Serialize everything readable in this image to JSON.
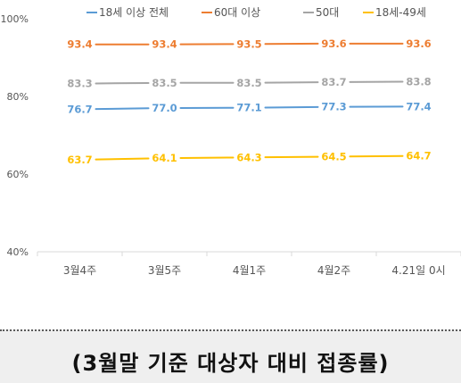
{
  "chart_data": {
    "type": "line",
    "categories": [
      "3월4주",
      "3월5주",
      "4월1주",
      "4월2주",
      "4.21일 0시"
    ],
    "ylim": [
      40,
      100
    ],
    "yticks": [
      40,
      60,
      80,
      100
    ],
    "ytick_labels": [
      "40%",
      "60%",
      "80%",
      "100%"
    ],
    "grid": false,
    "legend": "top",
    "series": [
      {
        "name": "18세 이상 전체",
        "color": "#5b9bd5",
        "values": [
          76.7,
          77.0,
          77.1,
          77.3,
          77.4
        ],
        "labels": [
          "76.7",
          "77.0",
          "77.1",
          "77.3",
          "77.4"
        ]
      },
      {
        "name": "60대 이상",
        "color": "#ed7d31",
        "values": [
          93.4,
          93.4,
          93.5,
          93.6,
          93.6
        ],
        "labels": [
          "93.4",
          "93.4",
          "93.5",
          "93.6",
          "93.6"
        ]
      },
      {
        "name": "50대",
        "color": "#a5a5a5",
        "values": [
          83.3,
          83.5,
          83.5,
          83.7,
          83.8
        ],
        "labels": [
          "83.3",
          "83.5",
          "83.5",
          "83.7",
          "83.8"
        ]
      },
      {
        "name": "18세-49세",
        "color": "#ffc000",
        "values": [
          63.7,
          64.1,
          64.3,
          64.5,
          64.7
        ],
        "labels": [
          "63.7",
          "64.1",
          "64.3",
          "64.5",
          "64.7"
        ]
      }
    ]
  },
  "caption": "(3월말 기준 대상자 대비 접종률)"
}
